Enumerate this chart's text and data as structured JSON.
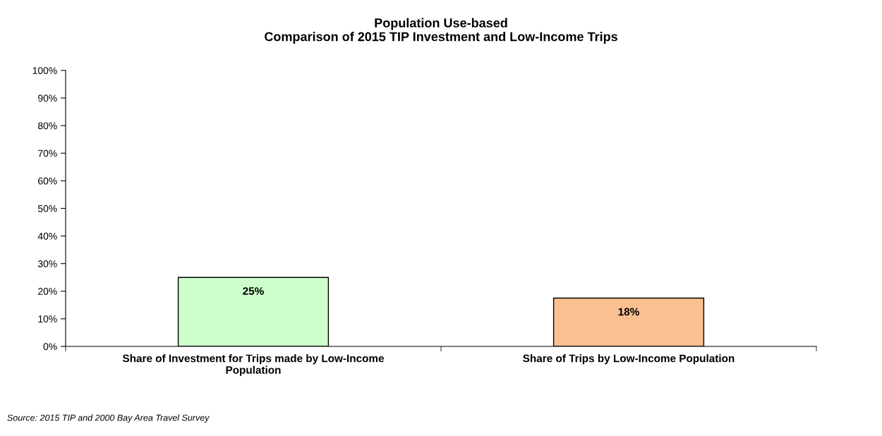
{
  "chart_data": {
    "type": "bar",
    "title": "Population Use-based\nComparison of 2015 TIP Investment and Low-Income Trips",
    "categories": [
      "Share of Investment for Trips made by Low-Income Population",
      "Share of Trips by Low-Income Population"
    ],
    "values": [
      25,
      17.5
    ],
    "colors": [
      "#ccffcc",
      "#fac090"
    ],
    "value_labels": [
      "25%",
      "18%"
    ],
    "ylim": [
      0,
      100
    ],
    "yticks": [
      {
        "value": 0,
        "label": "0%"
      },
      {
        "value": 10,
        "label": "10%"
      },
      {
        "value": 20,
        "label": "20%"
      },
      {
        "value": 30,
        "label": "30%"
      },
      {
        "value": 40,
        "label": "40%"
      },
      {
        "value": 50,
        "label": "50%"
      },
      {
        "value": 60,
        "label": "60%"
      },
      {
        "value": 70,
        "label": "70%"
      },
      {
        "value": 80,
        "label": "80%"
      },
      {
        "value": 90,
        "label": "90%"
      },
      {
        "value": 100,
        "label": "100%"
      }
    ],
    "grid": false,
    "legend": false,
    "annotations": [
      "Source: 2015 TIP and 2000 Bay Area Travel Survey"
    ]
  }
}
